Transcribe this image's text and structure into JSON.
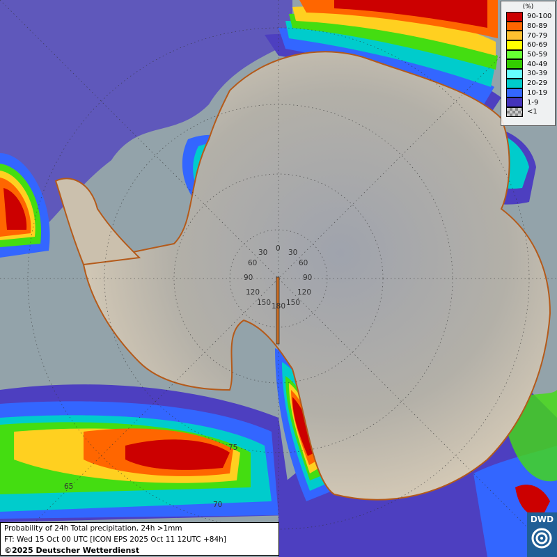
{
  "legend": {
    "unit": "(%)",
    "items": [
      {
        "label": "90-100",
        "color": "#cc0000"
      },
      {
        "label": "80-89",
        "color": "#ff6600"
      },
      {
        "label": "70-79",
        "color": "#ffc030"
      },
      {
        "label": "60-69",
        "color": "#ffff00"
      },
      {
        "label": "50-59",
        "color": "#66ff33"
      },
      {
        "label": "40-49",
        "color": "#33cc00"
      },
      {
        "label": "30-39",
        "color": "#66ffff"
      },
      {
        "label": "20-29",
        "color": "#00cccc"
      },
      {
        "label": "10-19",
        "color": "#3366ff"
      },
      {
        "label": "1-9",
        "color": "#4433bb"
      },
      {
        "label": "<1",
        "color": "#aaaaaa"
      }
    ]
  },
  "info": {
    "title": "Probability of 24h Total precipitation, 24h >1mm",
    "forecast": "FT: Wed 15 Oct 00 UTC [ICON EPS 2025 Oct 11 12UTC +84h]",
    "copyright": "©2025 Deutscher Wetterdienst"
  },
  "logo": {
    "text": "DWD"
  },
  "grid_labels": {
    "lon": [
      "0",
      "30",
      "30",
      "60",
      "60",
      "90",
      "90",
      "120",
      "120",
      "150",
      "150",
      "180"
    ],
    "lat": [
      "65",
      "70",
      "75"
    ]
  },
  "colors": {
    "ocean": "#93a3aa",
    "land": "#c9bfae",
    "coast": "#b45a1a"
  }
}
